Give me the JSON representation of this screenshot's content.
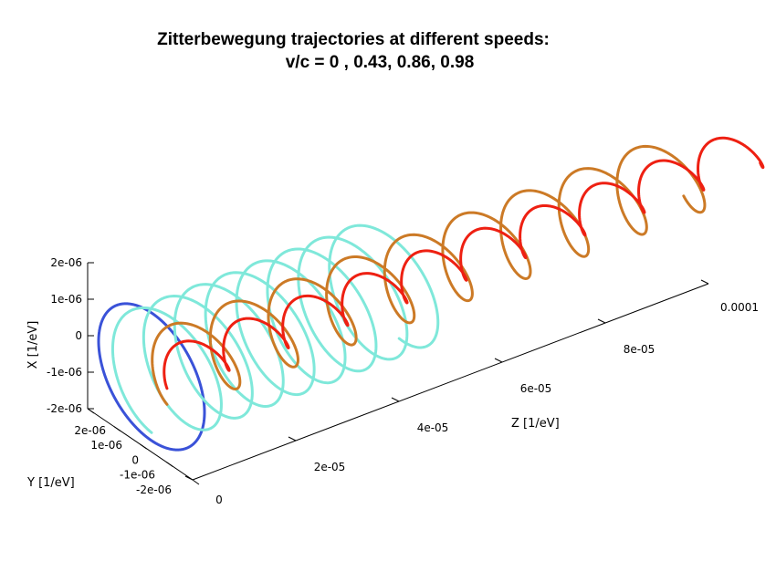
{
  "chart_data": {
    "type": "line",
    "projection": "3d",
    "title_lines": [
      "Zitterbewegung trajectories at different speeds:",
      "v/c =  0 , 0.43, 0.86, 0.98"
    ],
    "x_axis": {
      "label": "X [1/eV]",
      "range": [
        -2e-06,
        2e-06
      ],
      "ticks": [
        {
          "value": 2e-06,
          "label": "2e-06"
        },
        {
          "value": 1e-06,
          "label": "1e-06"
        },
        {
          "value": 0,
          "label": "0"
        },
        {
          "value": -1e-06,
          "label": "-1e-06"
        },
        {
          "value": -2e-06,
          "label": "-2e-06"
        }
      ]
    },
    "y_axis": {
      "label": "Y [1/eV]",
      "range": [
        -2e-06,
        2e-06
      ],
      "ticks": [
        {
          "value": 2e-06,
          "label": "2e-06"
        },
        {
          "value": 1e-06,
          "label": "1e-06"
        },
        {
          "value": 0,
          "label": "0"
        },
        {
          "value": -1e-06,
          "label": "-1e-06"
        },
        {
          "value": -2e-06,
          "label": "-2e-06"
        }
      ]
    },
    "z_axis": {
      "label": "Z [1/eV]",
      "range": [
        0,
        0.0001
      ],
      "ticks": [
        {
          "value": 0,
          "label": "0"
        },
        {
          "value": 2e-05,
          "label": "2e-05"
        },
        {
          "value": 4e-05,
          "label": "4e-05"
        },
        {
          "value": 6e-05,
          "label": "6e-05"
        },
        {
          "value": 8e-05,
          "label": "8e-05"
        },
        {
          "value": 0.0001,
          "label": "0.0001"
        }
      ]
    },
    "series": [
      {
        "key": "v0",
        "color": "#3a52d8",
        "radius": 2e-06,
        "z_start": 0,
        "z_end": 0,
        "turns": 1,
        "start_phase_deg": 90,
        "end_phase_deg": 450
      },
      {
        "key": "v043",
        "color": "#7fe8da",
        "radius": 1.75e-06,
        "z_start": 0,
        "z_end": 4.8e-05,
        "turns": 8,
        "start_phase_deg": 180,
        "end_phase_deg": 3060
      },
      {
        "key": "v086",
        "color": "#cc7a26",
        "radius": 1.05e-06,
        "z_start": 3e-06,
        "z_end": 0.000105,
        "turns": 9,
        "start_phase_deg": 180,
        "end_phase_deg": 3440
      },
      {
        "key": "v098",
        "color": "#ee2012",
        "radius": 5.5e-07,
        "z_start": 3e-06,
        "z_end": 0.000118,
        "turns": 10,
        "start_phase_deg": 180,
        "end_phase_deg": 3780
      }
    ]
  }
}
